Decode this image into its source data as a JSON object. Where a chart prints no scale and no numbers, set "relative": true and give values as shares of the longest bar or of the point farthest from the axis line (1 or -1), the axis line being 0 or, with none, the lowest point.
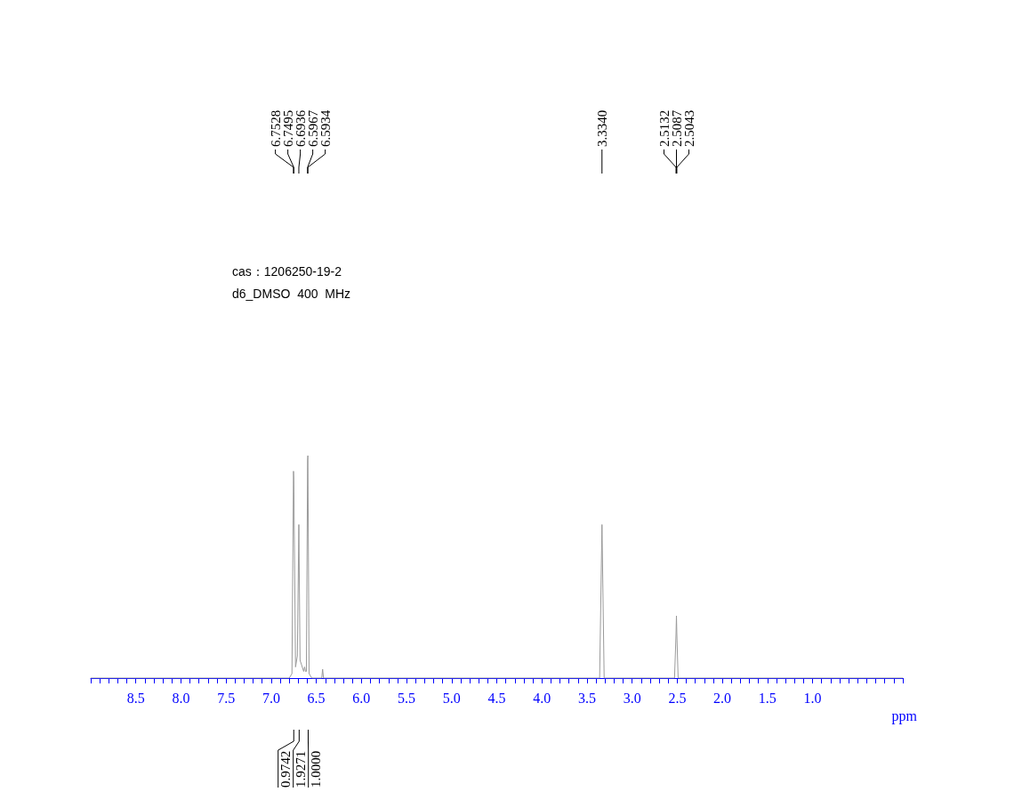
{
  "chart_data": {
    "type": "line",
    "relative": true,
    "color": "#9a9a9a",
    "xlabel": "ppm",
    "xlim": [
      9.0,
      0.0
    ],
    "xticks": [
      {
        "value": 9.0,
        "label": null
      },
      {
        "value": 8.9,
        "label": null
      },
      {
        "value": 8.8,
        "label": null
      },
      {
        "value": 8.7,
        "label": null
      },
      {
        "value": 8.6,
        "label": null
      },
      8.5,
      {
        "value": 8.4,
        "label": null
      },
      {
        "value": 8.3,
        "label": null
      },
      {
        "value": 8.2,
        "label": null
      },
      {
        "value": 8.1,
        "label": null
      },
      {
        "value": 8.0,
        "label": "8.0"
      },
      {
        "value": 7.9,
        "label": null
      },
      {
        "value": 7.8,
        "label": null
      },
      {
        "value": 7.7,
        "label": null
      },
      {
        "value": 7.6,
        "label": null
      },
      7.5,
      {
        "value": 7.4,
        "label": null
      },
      {
        "value": 7.3,
        "label": null
      },
      {
        "value": 7.2,
        "label": null
      },
      {
        "value": 7.1,
        "label": null
      },
      {
        "value": 7.0,
        "label": "7.0"
      },
      {
        "value": 6.9,
        "label": null
      },
      {
        "value": 6.8,
        "label": null
      },
      {
        "value": 6.7,
        "label": null
      },
      {
        "value": 6.6,
        "label": null
      },
      6.5,
      {
        "value": 6.4,
        "label": null
      },
      {
        "value": 6.3,
        "label": null
      },
      {
        "value": 6.2,
        "label": null
      },
      {
        "value": 6.1,
        "label": null
      },
      {
        "value": 6.0,
        "label": "6.0"
      },
      {
        "value": 5.9,
        "label": null
      },
      {
        "value": 5.8,
        "label": null
      },
      {
        "value": 5.7,
        "label": null
      },
      {
        "value": 5.6,
        "label": null
      },
      5.5,
      {
        "value": 5.4,
        "label": null
      },
      {
        "value": 5.3,
        "label": null
      },
      {
        "value": 5.2,
        "label": null
      },
      {
        "value": 5.1,
        "label": null
      },
      {
        "value": 5.0,
        "label": "5.0"
      },
      {
        "value": 4.9,
        "label": null
      },
      {
        "value": 4.8,
        "label": null
      },
      {
        "value": 4.7,
        "label": null
      },
      {
        "value": 4.6,
        "label": null
      },
      4.5,
      {
        "value": 4.4,
        "label": null
      },
      {
        "value": 4.3,
        "label": null
      },
      {
        "value": 4.2,
        "label": null
      },
      {
        "value": 4.1,
        "label": null
      },
      {
        "value": 4.0,
        "label": "4.0"
      },
      {
        "value": 3.9,
        "label": null
      },
      {
        "value": 3.8,
        "label": null
      },
      {
        "value": 3.7,
        "label": null
      },
      {
        "value": 3.6,
        "label": null
      },
      3.5,
      {
        "value": 3.4,
        "label": null
      },
      {
        "value": 3.3,
        "label": null
      },
      {
        "value": 3.2,
        "label": null
      },
      {
        "value": 3.1,
        "label": null
      },
      {
        "value": 3.0,
        "label": "3.0"
      },
      {
        "value": 2.9,
        "label": null
      },
      {
        "value": 2.8,
        "label": null
      },
      {
        "value": 2.7,
        "label": null
      },
      {
        "value": 2.6,
        "label": null
      },
      2.5,
      {
        "value": 2.4,
        "label": null
      },
      {
        "value": 2.3,
        "label": null
      },
      {
        "value": 2.2,
        "label": null
      },
      {
        "value": 2.1,
        "label": null
      },
      {
        "value": 2.0,
        "label": "2.0"
      },
      {
        "value": 1.9,
        "label": null
      },
      {
        "value": 1.8,
        "label": null
      },
      {
        "value": 1.7,
        "label": null
      },
      {
        "value": 1.6,
        "label": null
      },
      1.5,
      {
        "value": 1.4,
        "label": null
      },
      {
        "value": 1.3,
        "label": null
      },
      {
        "value": 1.2,
        "label": null
      },
      {
        "value": 1.1,
        "label": null
      },
      {
        "value": 1.0,
        "label": "1.0"
      },
      {
        "value": 0.9,
        "label": null
      },
      {
        "value": 0.8,
        "label": null
      },
      {
        "value": 0.7,
        "label": null
      },
      {
        "value": 0.6,
        "label": null
      },
      {
        "value": 0.5,
        "label": null
      },
      {
        "value": 0.4,
        "label": null
      },
      {
        "value": 0.3,
        "label": null
      },
      {
        "value": 0.2,
        "label": null
      },
      {
        "value": 0.1,
        "label": null
      },
      {
        "value": 0.0,
        "label": null
      }
    ],
    "x": [
      9.0,
      6.8,
      6.77,
      6.7528,
      6.7495,
      6.73,
      6.71,
      6.6936,
      6.68,
      6.64,
      6.63,
      6.62,
      6.61,
      6.5967,
      6.5934,
      6.58,
      6.55,
      6.44,
      6.43,
      6.42,
      3.36,
      3.334,
      3.31,
      2.53,
      2.5132,
      2.5087,
      2.5043,
      2.49,
      0.0
    ],
    "values": [
      0,
      0,
      0.02,
      0.93,
      0.9,
      0.05,
      0.1,
      0.69,
      0.08,
      0.03,
      0.05,
      0.03,
      0.03,
      0.98,
      1,
      0.02,
      0,
      0,
      0.04,
      0,
      0,
      0.69,
      0,
      0,
      0.2,
      0.28,
      0.2,
      0,
      0
    ],
    "annotations": [
      "cas：1206250-19-2",
      "d6_DMSO  400  MHz",
      {
        "text": "6.7528",
        "x": 6.7528
      },
      {
        "text": "6.7495",
        "x": 6.7495
      },
      {
        "text": "6.6936",
        "x": 6.6936
      },
      {
        "text": "6.5967",
        "x": 6.5967
      },
      {
        "text": "6.5934",
        "x": 6.5934
      },
      {
        "text": "3.3340",
        "x": 3.334
      },
      {
        "text": "2.5132",
        "x": 2.5132
      },
      {
        "text": "2.5087",
        "x": 2.5087
      },
      {
        "text": "2.5043",
        "x": 2.5043
      },
      {
        "text": "0.9742",
        "x": 6.75
      },
      {
        "text": "1.9271",
        "x": 6.69
      },
      {
        "text": "1.0000",
        "x": 6.59
      }
    ]
  }
}
